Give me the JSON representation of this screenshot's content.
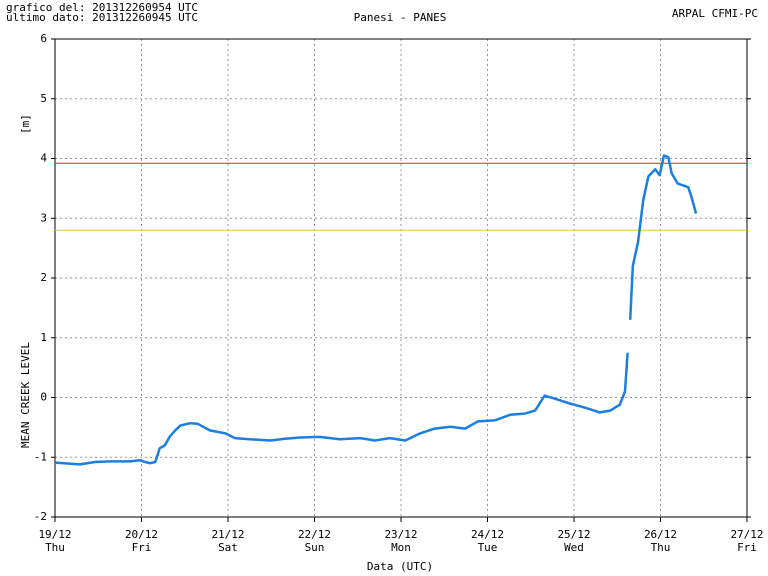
{
  "chart_data": {
    "type": "line",
    "header_left": [
      "grafico del: 201312260954 UTC",
      "ultimo dato: 201312260945 UTC"
    ],
    "title": "Panesi - PANES",
    "header_right": "ARPAL CFMI-PC",
    "xlabel": "Data (UTC)",
    "ylabel": "MEAN CREEK LEVEL",
    "yunit": "[m]",
    "xlim": [
      0,
      8
    ],
    "ylim": [
      -2,
      6
    ],
    "yticks": [
      -2,
      -1,
      0,
      1,
      2,
      3,
      4,
      5,
      6
    ],
    "xticks": [
      {
        "value": 0,
        "label": "19/12"
      },
      {
        "value": 1,
        "label": "20/12"
      },
      {
        "value": 2,
        "label": "21/12"
      },
      {
        "value": 3,
        "label": "22/12"
      },
      {
        "value": 4,
        "label": "23/12"
      },
      {
        "value": 5,
        "label": "24/12"
      },
      {
        "value": 6,
        "label": "25/12"
      },
      {
        "value": 7,
        "label": "26/12"
      },
      {
        "value": 8,
        "label": "27/12"
      }
    ],
    "xtick_weekdays": [
      "Thu",
      "Fri",
      "Sat",
      "Sun",
      "Mon",
      "Tue",
      "Wed",
      "Thu",
      "Fri"
    ],
    "grid": true,
    "hlines": [
      {
        "value": 3.92,
        "color": "#e02020"
      },
      {
        "value": 2.8,
        "color": "#f0c040"
      }
    ],
    "series": [
      {
        "color": "#1a7fe0",
        "x": [
          0,
          0.29,
          0.46,
          0.64,
          0.87,
          0.98,
          1.04,
          1.1,
          1.16,
          1.21,
          1.27,
          1.33,
          1.39,
          1.45,
          1.56,
          1.65,
          1.79,
          1.97,
          2.08,
          2.25,
          2.49,
          2.66,
          2.83,
          3.06,
          3.29,
          3.53,
          3.7,
          3.87,
          4.05,
          4.22,
          4.39,
          4.57,
          4.74,
          4.89,
          5.09,
          5.26,
          5.43,
          5.55,
          5.66,
          5.78,
          5.95,
          6.13,
          6.3,
          6.42,
          6.53,
          6.59,
          6.62,
          6.635,
          6.65,
          6.68,
          6.74,
          6.8,
          6.86,
          6.94,
          6.99,
          7.04,
          7.09,
          7.13,
          7.2,
          7.32,
          7.36,
          7.41
        ],
        "values": [
          -1.09,
          -1.12,
          -1.08,
          -1.07,
          -1.07,
          -1.05,
          -1.08,
          -1.1,
          -1.08,
          -0.85,
          -0.8,
          -0.65,
          -0.55,
          -0.47,
          -0.43,
          -0.44,
          -0.55,
          -0.6,
          -0.68,
          -0.7,
          -0.72,
          -0.69,
          -0.67,
          -0.66,
          -0.7,
          -0.68,
          -0.72,
          -0.68,
          -0.72,
          -0.6,
          -0.52,
          -0.49,
          -0.52,
          -0.4,
          -0.38,
          -0.29,
          -0.27,
          -0.22,
          0.03,
          -0.02,
          -0.1,
          -0.17,
          -0.25,
          -0.22,
          -0.12,
          0.1,
          0.75,
          null,
          1.3,
          2.2,
          2.6,
          3.3,
          3.7,
          3.82,
          3.72,
          4.05,
          4.02,
          3.75,
          3.58,
          3.52,
          3.35,
          3.08
        ]
      }
    ]
  }
}
